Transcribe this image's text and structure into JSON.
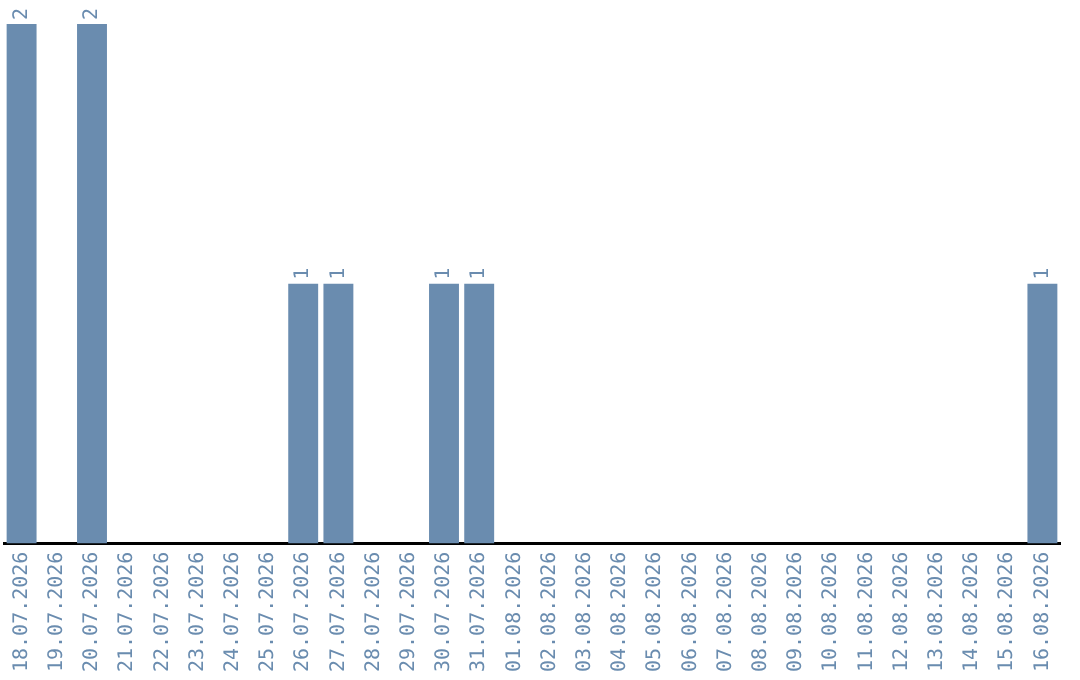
{
  "chart_data": {
    "type": "bar",
    "categories": [
      "18.07.2026",
      "19.07.2026",
      "20.07.2026",
      "21.07.2026",
      "22.07.2026",
      "23.07.2026",
      "24.07.2026",
      "25.07.2026",
      "26.07.2026",
      "27.07.2026",
      "28.07.2026",
      "29.07.2026",
      "30.07.2026",
      "31.07.2026",
      "01.08.2026",
      "02.08.2026",
      "03.08.2026",
      "04.08.2026",
      "05.08.2026",
      "06.08.2026",
      "07.08.2026",
      "08.08.2026",
      "09.08.2026",
      "10.08.2026",
      "11.08.2026",
      "12.08.2026",
      "13.08.2026",
      "14.08.2026",
      "15.08.2026",
      "16.08.2026"
    ],
    "values": [
      2,
      0,
      2,
      0,
      0,
      0,
      0,
      0,
      1,
      1,
      0,
      0,
      1,
      1,
      0,
      0,
      0,
      0,
      0,
      0,
      0,
      0,
      0,
      0,
      0,
      0,
      0,
      0,
      0,
      1
    ],
    "value_labels": [
      "2",
      null,
      "2",
      null,
      null,
      null,
      null,
      null,
      "1",
      "1",
      null,
      null,
      "1",
      "1",
      null,
      null,
      null,
      null,
      null,
      null,
      null,
      null,
      null,
      null,
      null,
      null,
      null,
      null,
      null,
      "1"
    ],
    "color": "#6a8caf",
    "grid": false,
    "legend": false
  }
}
